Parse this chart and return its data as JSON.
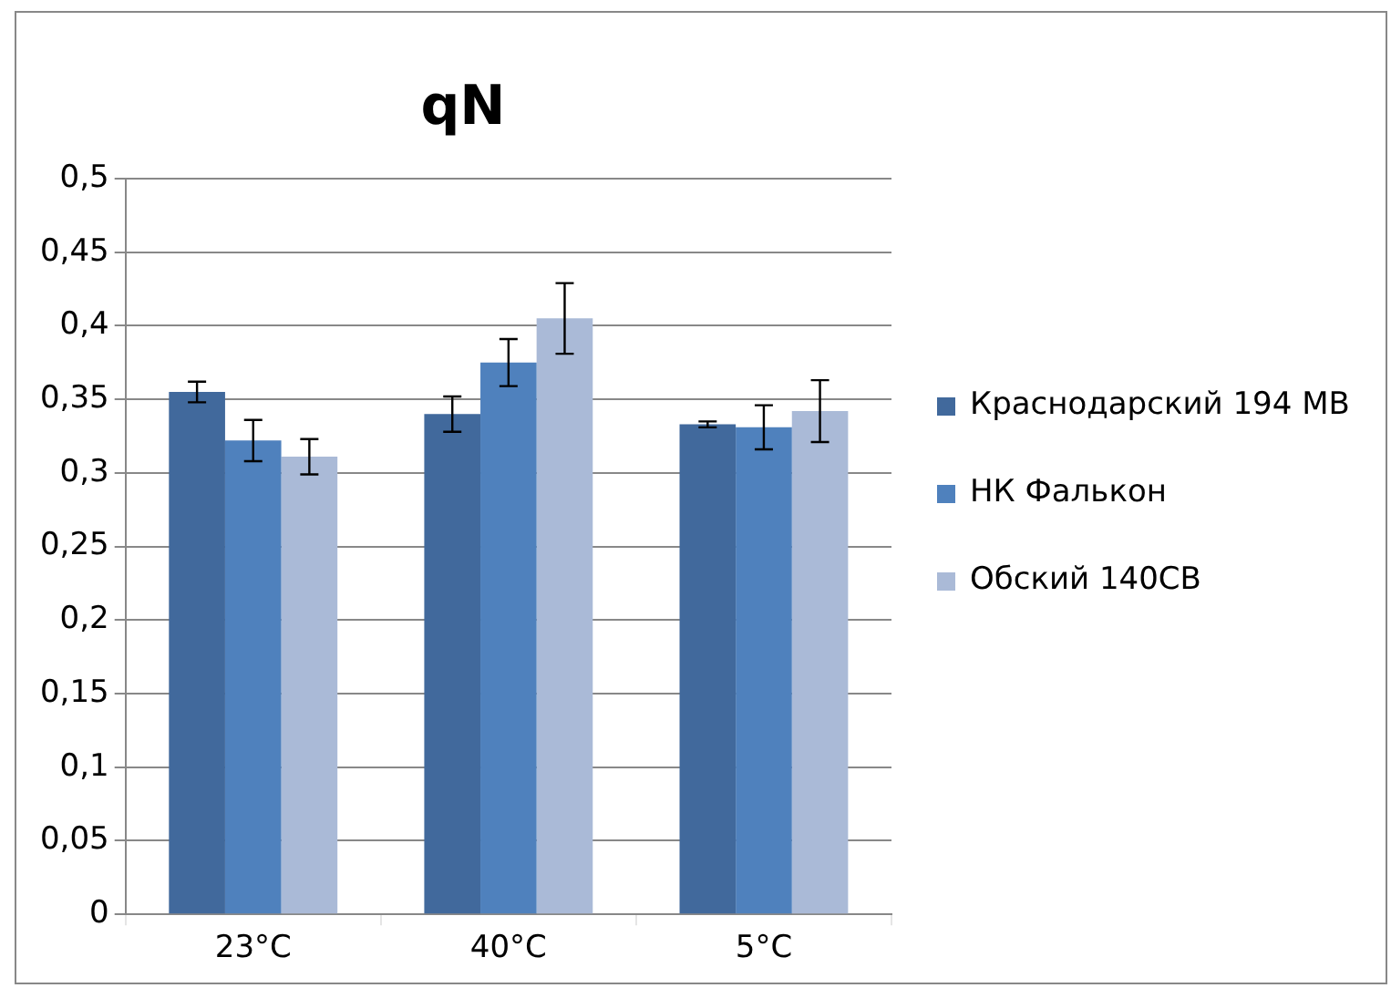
{
  "chart_data": {
    "type": "bar",
    "title": "qN",
    "categories": [
      "23°C",
      "40°C",
      "5°C"
    ],
    "series": [
      {
        "name": "Краснодарский 194 МВ",
        "color": "#41699c",
        "values": [
          0.355,
          0.34,
          0.333
        ],
        "errors": [
          0.007,
          0.012,
          0.002
        ]
      },
      {
        "name": "НК Фалькон",
        "color": "#4f81bd",
        "values": [
          0.322,
          0.375,
          0.331
        ],
        "errors": [
          0.014,
          0.016,
          0.015
        ]
      },
      {
        "name": "Обский 140СВ",
        "color": "#aabad7",
        "values": [
          0.311,
          0.405,
          0.342
        ],
        "errors": [
          0.012,
          0.024,
          0.021
        ]
      }
    ],
    "ylim": [
      0,
      0.5
    ],
    "yticks": [
      {
        "value": 0,
        "label": "0"
      },
      {
        "value": 0.05,
        "label": "0,05"
      },
      {
        "value": 0.1,
        "label": "0,1"
      },
      {
        "value": 0.15,
        "label": "0,15"
      },
      {
        "value": 0.2,
        "label": "0,2"
      },
      {
        "value": 0.25,
        "label": "0,25"
      },
      {
        "value": 0.3,
        "label": "0,3"
      },
      {
        "value": 0.35,
        "label": "0,35"
      },
      {
        "value": 0.4,
        "label": "0,4"
      },
      {
        "value": 0.45,
        "label": "0,45"
      },
      {
        "value": 0.5,
        "label": "0,5"
      }
    ],
    "grid": "y",
    "legend": "right"
  }
}
